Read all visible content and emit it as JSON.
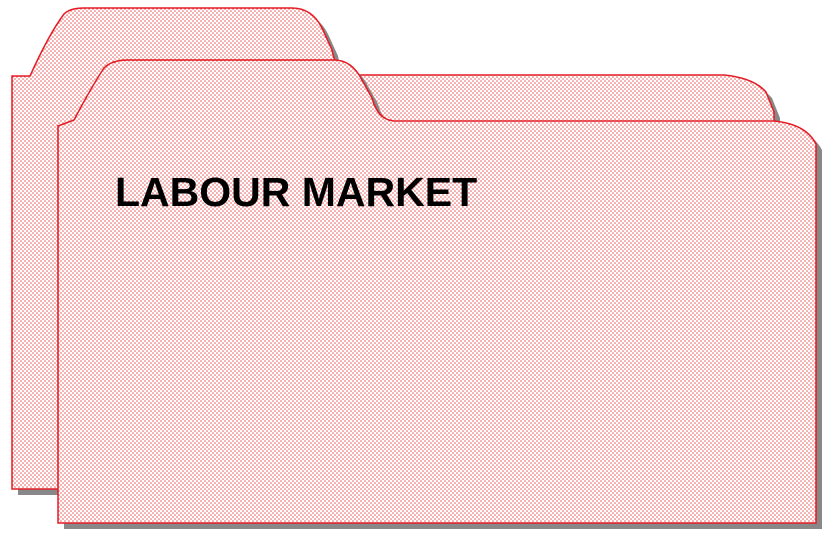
{
  "label": {
    "title": "LABOUR MARKET"
  }
}
